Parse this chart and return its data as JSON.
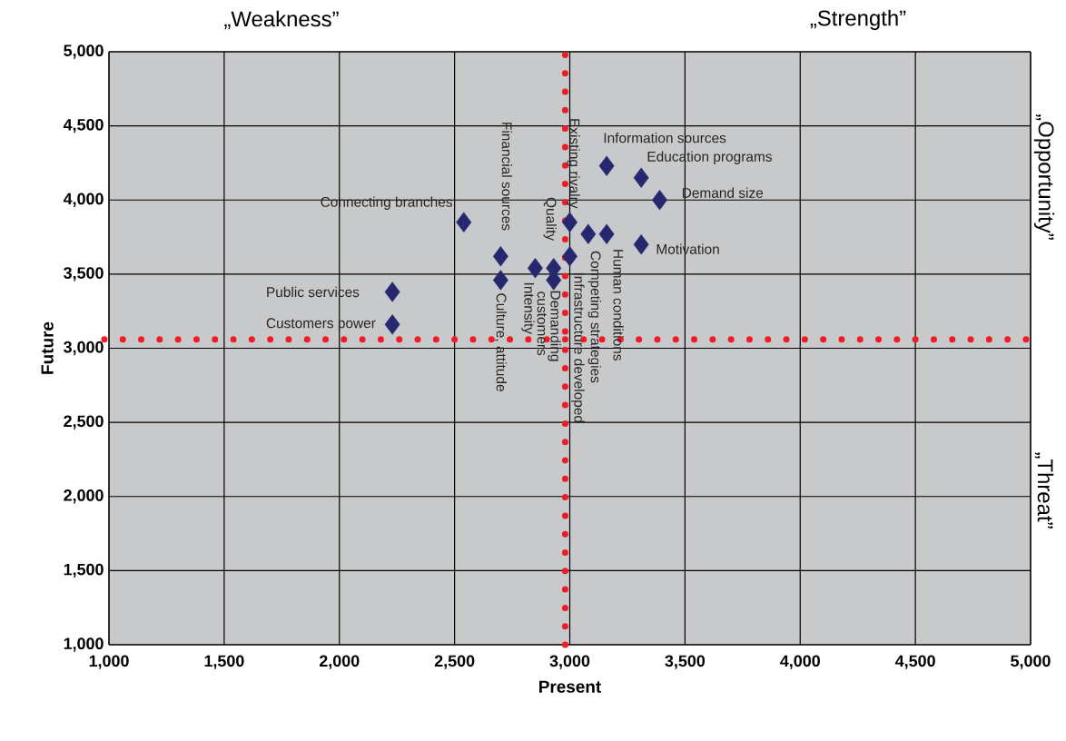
{
  "chart_data": {
    "type": "scatter",
    "xlabel": "Present",
    "ylabel": "Future",
    "xlim": [
      1000,
      5000
    ],
    "ylim": [
      1000,
      5000
    ],
    "xticks": [
      {
        "value": 1000,
        "label": "1,000"
      },
      {
        "value": 1500,
        "label": "1,500"
      },
      {
        "value": 2000,
        "label": "2,000"
      },
      {
        "value": 2500,
        "label": "2,500"
      },
      {
        "value": 3000,
        "label": "3,000"
      },
      {
        "value": 3500,
        "label": "3,500"
      },
      {
        "value": 4000,
        "label": "4,000"
      },
      {
        "value": 4500,
        "label": "4,500"
      },
      {
        "value": 5000,
        "label": "5,000"
      }
    ],
    "yticks": [
      {
        "value": 1000,
        "label": "1,000"
      },
      {
        "value": 1500,
        "label": "1,500"
      },
      {
        "value": 2000,
        "label": "2,000"
      },
      {
        "value": 2500,
        "label": "2,500"
      },
      {
        "value": 3000,
        "label": "3,000"
      },
      {
        "value": 3500,
        "label": "3,500"
      },
      {
        "value": 4000,
        "label": "4,000"
      },
      {
        "value": 4500,
        "label": "4,500"
      },
      {
        "value": 5000,
        "label": "5,000"
      }
    ],
    "grid": true,
    "marker": "diamond",
    "series": [
      {
        "color": "#26286f",
        "x": [
          2230,
          2230,
          2540,
          2700,
          2700,
          2850,
          2930,
          2930,
          3000,
          3000,
          3080,
          3160,
          3160,
          3310,
          3390,
          3310
        ],
        "values": [
          3380,
          3160,
          3850,
          3620,
          3460,
          3540,
          3540,
          3460,
          3850,
          3620,
          3770,
          3770,
          4230,
          4150,
          4000,
          3700
        ]
      }
    ],
    "ref_lines": [
      {
        "axis": "x",
        "value": 2980,
        "color": "#ee1c25",
        "line_style": "dotted"
      },
      {
        "axis": "y",
        "value": 3060,
        "color": "#ee1c25",
        "line_style": "dotted"
      }
    ],
    "annotations": [
      "„Weakness”",
      "„Strength”",
      "„Opportunity”",
      "„Threat”",
      {
        "text": "Public services",
        "x": 2230,
        "y": 3380
      },
      {
        "text": "Customers power",
        "x": 2230,
        "y": 3160
      },
      {
        "text": "Connecting branches",
        "x": 2540,
        "y": 3850
      },
      {
        "text": "Financial sources",
        "x": 2700,
        "y": 3620
      },
      {
        "text": "Culture, attitude",
        "x": 2700,
        "y": 3460
      },
      {
        "text": "Intensity",
        "x": 2850,
        "y": 3540
      },
      {
        "text": "Quality",
        "x": 2930,
        "y": 3540
      },
      {
        "text": "customers",
        "x": 2930,
        "y": 3460
      },
      {
        "text": "Existing rivalry",
        "x": 3000,
        "y": 3850
      },
      {
        "text": "Infrastructure developed",
        "x": 3000,
        "y": 3620
      },
      {
        "text": "Demanding",
        "x": 3000,
        "y": 3620
      },
      {
        "text": "Competing strategies",
        "x": 3080,
        "y": 3770
      },
      {
        "text": "Human conditions",
        "x": 3160,
        "y": 3770
      },
      {
        "text": "Information sources",
        "x": 3160,
        "y": 4230
      },
      {
        "text": "Education programs",
        "x": 3310,
        "y": 4150
      },
      {
        "text": "Demand size",
        "x": 3390,
        "y": 4000
      },
      {
        "text": "Motivation",
        "x": 3310,
        "y": 3700
      }
    ]
  }
}
